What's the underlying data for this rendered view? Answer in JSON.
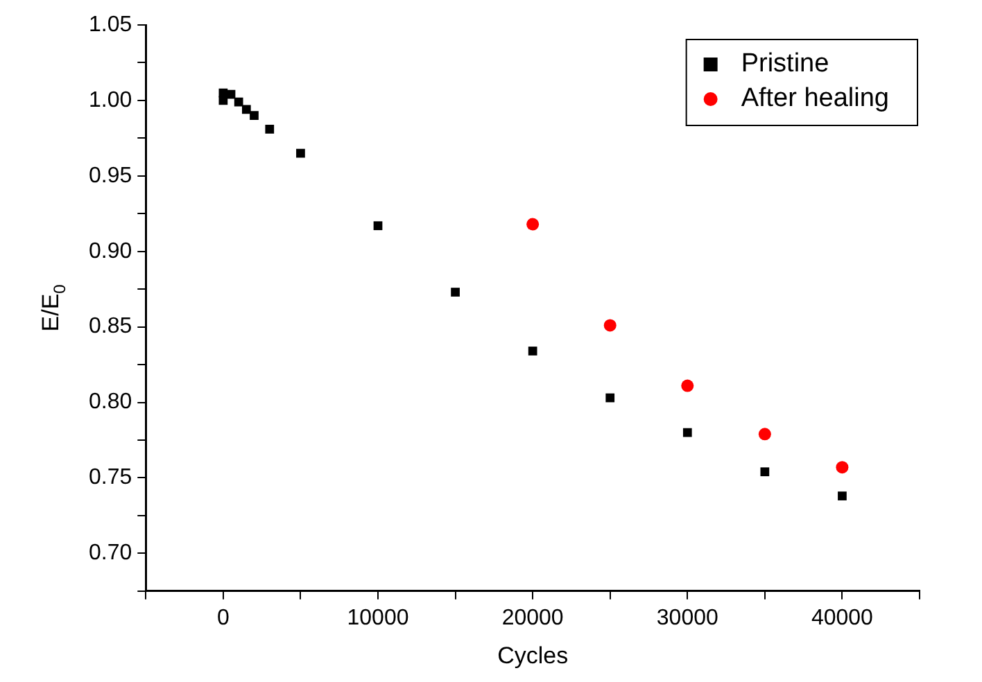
{
  "chart_data": {
    "type": "scatter",
    "xlabel": "Cycles",
    "ylabel": "E/E$_{0}$",
    "xlim": [
      -5000,
      45000
    ],
    "xticks": [
      {
        "value": -5000,
        "label": null
      },
      0,
      {
        "value": 5000,
        "label": null
      },
      10000,
      {
        "value": 15000,
        "label": null
      },
      20000,
      {
        "value": 25000,
        "label": null
      },
      30000,
      {
        "value": 35000,
        "label": null
      },
      40000,
      {
        "value": 45000,
        "label": null
      }
    ],
    "ylim": [
      0.675,
      1.05
    ],
    "yticks": [
      {
        "value": 0.675,
        "label": null
      },
      {
        "value": 0.7,
        "label": "0.70"
      },
      {
        "value": 0.725,
        "label": null
      },
      {
        "value": 0.75,
        "label": "0.75"
      },
      {
        "value": 0.775,
        "label": null
      },
      {
        "value": 0.8,
        "label": "0.80"
      },
      {
        "value": 0.825,
        "label": null
      },
      {
        "value": 0.85,
        "label": "0.85"
      },
      {
        "value": 0.875,
        "label": null
      },
      {
        "value": 0.9,
        "label": "0.90"
      },
      {
        "value": 0.925,
        "label": null
      },
      {
        "value": 0.95,
        "label": "0.95"
      },
      {
        "value": 0.975,
        "label": null
      },
      {
        "value": 1.0,
        "label": "1.00"
      },
      {
        "value": 1.025,
        "label": null
      },
      {
        "value": 1.05,
        "label": "1.05"
      }
    ],
    "grid": false,
    "legend": "top right",
    "series": [
      {
        "name": "Pristine",
        "color": "#000000",
        "marker": "square",
        "x": [
          0,
          0,
          500,
          1000,
          1500,
          2000,
          3000,
          5000,
          10000,
          15000,
          20000,
          25000,
          30000,
          35000,
          40000
        ],
        "values": [
          1.0,
          1.005,
          1.004,
          0.999,
          0.994,
          0.99,
          0.981,
          0.965,
          0.917,
          0.873,
          0.834,
          0.803,
          0.78,
          0.754,
          0.738
        ]
      },
      {
        "name": "After healing",
        "color": "#ff0000",
        "marker": "circle",
        "x": [
          20000,
          25000,
          30000,
          35000,
          40000
        ],
        "values": [
          0.918,
          0.851,
          0.811,
          0.779,
          0.757
        ]
      }
    ]
  }
}
